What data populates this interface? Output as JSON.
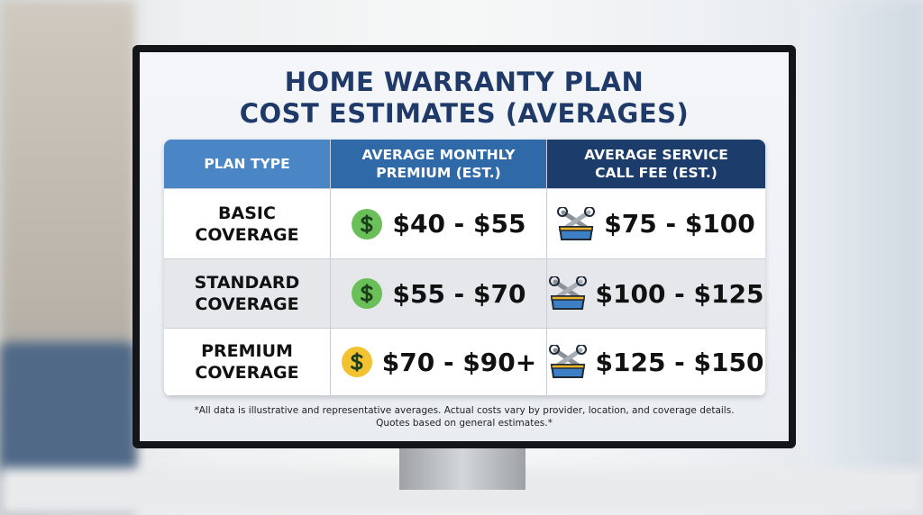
{
  "title": {
    "line1": "HOME WARRANTY PLAN",
    "line2": "COST ESTIMATES (AVERAGES)"
  },
  "table": {
    "header": [
      [
        "PLAN TYPE"
      ],
      [
        "AVERAGE MONTHLY",
        "PREMIUM (EST.)"
      ],
      [
        "AVERAGE SERVICE",
        "CALL FEE (EST.)"
      ]
    ],
    "rows": [
      [
        [
          "BASIC",
          "COVERAGE"
        ],
        "$40 - $55",
        "$75 - $100"
      ],
      [
        [
          "STANDARD",
          "COVERAGE"
        ],
        "$55 - $70",
        "$100 - $125"
      ],
      [
        [
          "PREMIUM",
          "COVERAGE"
        ],
        "$70 - $90+",
        "$125 - $150"
      ]
    ]
  },
  "footnote": [
    "*All data is illustrative and representative averages. Actual costs vary by provider, location, and coverage details.",
    "Quotes based on general estimates.*"
  ]
}
